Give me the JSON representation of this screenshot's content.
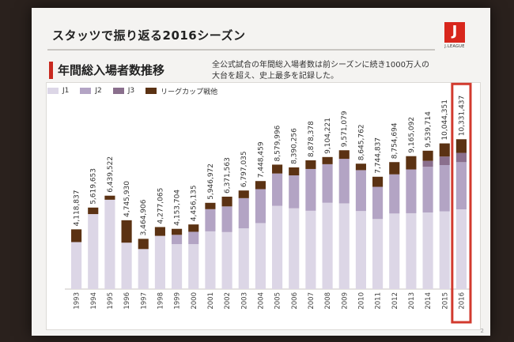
{
  "slide": {
    "title": "スタッツで振り返る2016シーズン",
    "section_title": "年間総入場者数推移",
    "note_line1": "全公式試合の年間総入場者数は前シーズンに続き1000万人の",
    "note_line2": "大台を超え、史上最多を記録した。",
    "logo_text": "J.LEAGUE",
    "page_number": "2"
  },
  "colors": {
    "J1": "#dcd6e6",
    "J2": "#b3a4c4",
    "J3": "#8a6f8d",
    "cup": "#5b3213",
    "highlight": "#d23a2e"
  },
  "chart_data": {
    "type": "bar",
    "stacked": true,
    "categories": [
      "1993",
      "1994",
      "1995",
      "1996",
      "1997",
      "1998",
      "1999",
      "2000",
      "2001",
      "2002",
      "2003",
      "2004",
      "2005",
      "2006",
      "2007",
      "2008",
      "2009",
      "2010",
      "2011",
      "2012",
      "2013",
      "2014",
      "2015",
      "2016"
    ],
    "totals_labels": [
      "4,118,837",
      "5,619,653",
      "6,439,522",
      "4,745,930",
      "3,464,906",
      "4,277,065",
      "4,153,704",
      "4,456,135",
      "5,946,972",
      "6,371,563",
      "6,797,035",
      "7,448,459",
      "8,579,996",
      "8,390,256",
      "8,878,378",
      "9,104,221",
      "9,571,079",
      "8,645,762",
      "7,744,837",
      "8,754,694",
      "9,165,092",
      "9,539,714",
      "10,044,351",
      "10,331,437"
    ],
    "totals": [
      4118837,
      5619653,
      6439522,
      4745930,
      3464906,
      4277065,
      4153704,
      4456135,
      5946972,
      6371563,
      6797035,
      7448459,
      8579996,
      8390256,
      8878378,
      9104221,
      9571079,
      8645762,
      7744837,
      8754694,
      9165092,
      9539714,
      10044351,
      10331437
    ],
    "series": [
      {
        "name": "J1",
        "values": [
          3240000,
          5170000,
          6160000,
          3200000,
          2760000,
          3670000,
          3100000,
          3100000,
          3980000,
          3930000,
          4190000,
          4550000,
          5740000,
          5570000,
          5400000,
          5950000,
          5910000,
          5380000,
          4830000,
          5210000,
          5230000,
          5280000,
          5360000,
          5500000
        ]
      },
      {
        "name": "J2",
        "values": [
          0,
          0,
          0,
          0,
          0,
          0,
          640000,
          850000,
          1530000,
          1770000,
          2080000,
          2340000,
          2230000,
          2270000,
          2880000,
          2660000,
          3070000,
          2820000,
          2220000,
          2700000,
          3020000,
          3150000,
          3190000,
          3250000
        ]
      },
      {
        "name": "J3",
        "values": [
          0,
          0,
          0,
          0,
          0,
          0,
          0,
          0,
          0,
          0,
          0,
          0,
          0,
          0,
          0,
          0,
          0,
          0,
          0,
          0,
          0,
          410000,
          590000,
          640000
        ]
      },
      {
        "name": "リーグカップ戦他",
        "values": [
          878837,
          449653,
          279522,
          1545930,
          704906,
          607065,
          413704,
          506135,
          436972,
          671563,
          527035,
          558459,
          609996,
          550256,
          598378,
          494221,
          591079,
          445762,
          694837,
          844694,
          915092,
          699714,
          904351,
          941437
        ]
      }
    ],
    "ylim": [
      0,
      11000000
    ],
    "legend_position": "top-left",
    "highlight_category": "2016"
  }
}
